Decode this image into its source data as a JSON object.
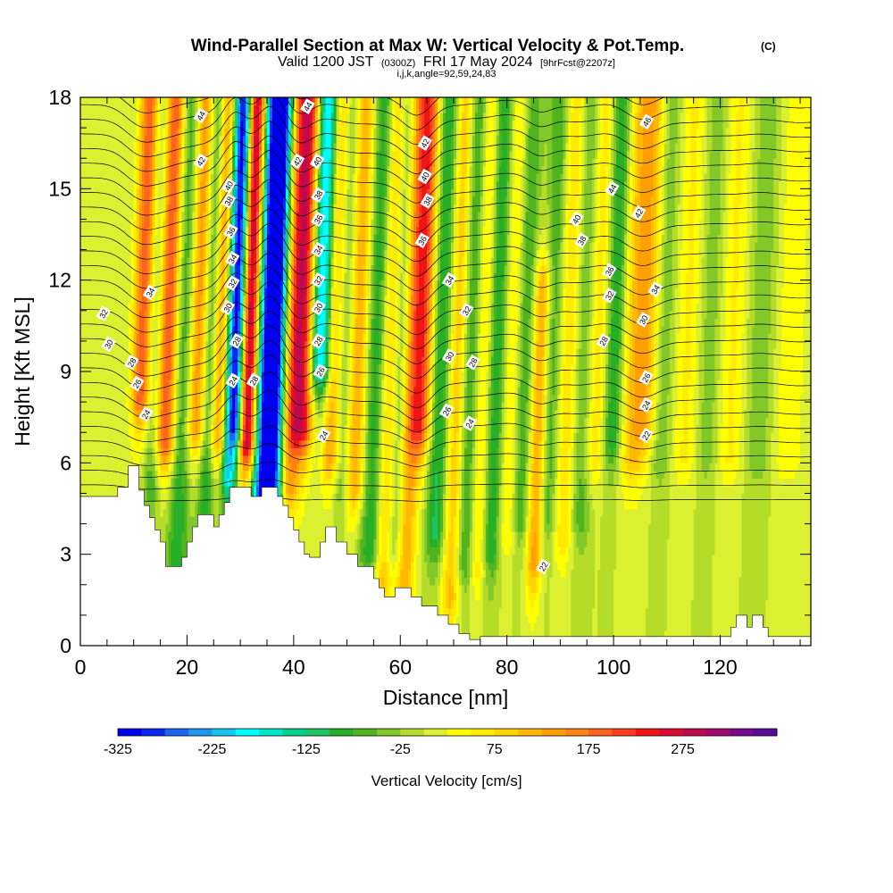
{
  "chart_data": {
    "type": "heatmap",
    "title": "Wind-Parallel Section at Max W: Vertical Velocity & Pot.Temp.",
    "copyright_mark": "(C)",
    "subtitle": {
      "valid_prefix": "Valid 1200 JST",
      "utc": "(0300Z)",
      "date": "FRI 17 May 2024",
      "forecast": "[9hrFcst@2207z]"
    },
    "section_info": "i,j,k,angle=92,59,24,83",
    "xlabel": "Distance [nm]",
    "ylabel": "Height [Kft MSL]",
    "xlim": [
      0,
      137
    ],
    "ylim": [
      0,
      18
    ],
    "xticks": [
      {
        "v": 0,
        "label": "0"
      },
      {
        "v": 20,
        "label": "20"
      },
      {
        "v": 40,
        "label": "40"
      },
      {
        "v": 60,
        "label": "60"
      },
      {
        "v": 80,
        "label": "80"
      },
      {
        "v": 100,
        "label": "100"
      },
      {
        "v": 120,
        "label": "120"
      }
    ],
    "yticks": [
      {
        "v": 0,
        "label": "0"
      },
      {
        "v": 3,
        "label": "3"
      },
      {
        "v": 6,
        "label": "6"
      },
      {
        "v": 9,
        "label": "9"
      },
      {
        "v": 12,
        "label": "12"
      },
      {
        "v": 15,
        "label": "15"
      },
      {
        "v": 18,
        "label": "18"
      }
    ],
    "colorbar": {
      "title": "Vertical Velocity [cm/s]",
      "min": -325,
      "step": 25,
      "colors": [
        "#0000f0",
        "#0a28f0",
        "#1e64f0",
        "#1e96f0",
        "#10c8f0",
        "#00ffff",
        "#00e6c8",
        "#00d28c",
        "#1ec364",
        "#28af28",
        "#50b41e",
        "#82c828",
        "#b4dc28",
        "#dcf032",
        "#ffff00",
        "#ffeb00",
        "#ffd200",
        "#ffb900",
        "#ffa000",
        "#ff8214",
        "#ff641e",
        "#ff3c1e",
        "#f01414",
        "#dc0a32",
        "#be0a50",
        "#a00a6e",
        "#780a8c",
        "#5a0a96"
      ],
      "labels": [
        {
          "v": -325,
          "label": "-325"
        },
        {
          "v": -225,
          "label": "-225"
        },
        {
          "v": -125,
          "label": "-125"
        },
        {
          "v": -25,
          "label": "-25"
        },
        {
          "v": 75,
          "label": "75"
        },
        {
          "v": 175,
          "label": "175"
        },
        {
          "v": 275,
          "label": "275"
        }
      ]
    },
    "terrain_kft": [
      [
        0,
        4.9
      ],
      [
        7,
        4.9
      ],
      [
        7,
        5.2
      ],
      [
        9,
        5.2
      ],
      [
        9,
        5.9
      ],
      [
        11,
        5.9
      ],
      [
        11,
        5.1
      ],
      [
        12,
        5.1
      ],
      [
        12,
        4.6
      ],
      [
        13,
        4.6
      ],
      [
        13,
        4.2
      ],
      [
        14,
        4.2
      ],
      [
        14,
        3.8
      ],
      [
        15,
        3.8
      ],
      [
        15,
        3.4
      ],
      [
        16,
        3.4
      ],
      [
        16,
        2.6
      ],
      [
        19,
        2.6
      ],
      [
        19,
        2.9
      ],
      [
        20,
        2.9
      ],
      [
        20,
        3.4
      ],
      [
        21,
        3.4
      ],
      [
        21,
        3.9
      ],
      [
        22,
        3.9
      ],
      [
        22,
        4.3
      ],
      [
        25,
        4.3
      ],
      [
        25,
        3.9
      ],
      [
        26,
        3.9
      ],
      [
        26,
        4.3
      ],
      [
        27,
        4.3
      ],
      [
        27,
        4.7
      ],
      [
        28,
        4.7
      ],
      [
        28,
        5.2
      ],
      [
        32,
        5.2
      ],
      [
        32,
        4.9
      ],
      [
        34,
        4.9
      ],
      [
        34,
        5.2
      ],
      [
        37,
        5.2
      ],
      [
        37,
        4.9
      ],
      [
        38,
        4.9
      ],
      [
        38,
        4.6
      ],
      [
        39,
        4.6
      ],
      [
        39,
        4.2
      ],
      [
        40,
        4.2
      ],
      [
        40,
        3.8
      ],
      [
        41,
        3.8
      ],
      [
        41,
        3.4
      ],
      [
        42,
        3.4
      ],
      [
        42,
        3.0
      ],
      [
        43,
        3.0
      ],
      [
        43,
        2.9
      ],
      [
        45,
        2.9
      ],
      [
        45,
        3.4
      ],
      [
        46,
        3.4
      ],
      [
        46,
        3.9
      ],
      [
        48,
        3.9
      ],
      [
        48,
        3.4
      ],
      [
        50,
        3.4
      ],
      [
        50,
        3.0
      ],
      [
        52,
        3.0
      ],
      [
        52,
        2.6
      ],
      [
        55,
        2.6
      ],
      [
        55,
        2.2
      ],
      [
        56,
        2.2
      ],
      [
        56,
        1.9
      ],
      [
        57,
        1.9
      ],
      [
        57,
        1.6
      ],
      [
        59,
        1.6
      ],
      [
        59,
        1.9
      ],
      [
        62,
        1.9
      ],
      [
        62,
        1.6
      ],
      [
        64,
        1.6
      ],
      [
        64,
        1.3
      ],
      [
        67,
        1.3
      ],
      [
        67,
        1.0
      ],
      [
        69,
        1.0
      ],
      [
        69,
        0.7
      ],
      [
        71,
        0.7
      ],
      [
        71,
        0.4
      ],
      [
        73,
        0.4
      ],
      [
        73,
        0.2
      ],
      [
        75,
        0.2
      ],
      [
        75,
        0.3
      ],
      [
        122,
        0.3
      ],
      [
        122,
        0.6
      ],
      [
        123,
        0.6
      ],
      [
        123,
        1.0
      ],
      [
        125,
        1.0
      ],
      [
        125,
        0.6
      ],
      [
        126,
        0.6
      ],
      [
        126,
        1.0
      ],
      [
        128,
        1.0
      ],
      [
        128,
        0.6
      ],
      [
        129,
        0.6
      ],
      [
        129,
        0.3
      ],
      [
        137,
        0.3
      ]
    ],
    "velocity_bands": [
      {
        "x": 11.5,
        "w": 1.3,
        "amp": 200,
        "top": 18,
        "base": 8.0
      },
      {
        "x": 14.2,
        "w": 1.3,
        "amp": -90,
        "top": 18,
        "base": 5.0
      },
      {
        "x": 16.2,
        "w": 1.4,
        "amp": 240,
        "top": 18,
        "base": 6.5
      },
      {
        "x": 19.2,
        "w": 1.6,
        "amp": -95,
        "top": 18,
        "base": 2.5
      },
      {
        "x": 22.0,
        "w": 1.3,
        "amp": 170,
        "top": 18,
        "base": 7.0
      },
      {
        "x": 24.3,
        "w": 1.2,
        "amp": -110,
        "top": 18,
        "base": 4.0
      },
      {
        "x": 26.3,
        "w": 1.2,
        "amp": 180,
        "top": 18,
        "base": 6.5
      },
      {
        "x": 28.2,
        "w": 1.1,
        "amp": -200,
        "top": 18,
        "base": 5.5
      },
      {
        "x": 29.6,
        "w": 1.0,
        "amp": -250,
        "top": 18,
        "base": 7.0
      },
      {
        "x": 31.6,
        "w": 1.3,
        "amp": 330,
        "top": 18,
        "base": 6.5
      },
      {
        "x": 33.9,
        "w": 1.2,
        "amp": -110,
        "top": 18,
        "base": 5.0
      },
      {
        "x": 36.2,
        "w": 1.7,
        "amp": -400,
        "top": 18,
        "base": 4.8
      },
      {
        "x": 39.4,
        "w": 1.3,
        "amp": 150,
        "top": 18,
        "base": 5.0
      },
      {
        "x": 41.8,
        "w": 1.6,
        "amp": 270,
        "top": 18,
        "base": 7.0
      },
      {
        "x": 44.8,
        "w": 1.6,
        "amp": -260,
        "top": 18,
        "base": 9.0
      },
      {
        "x": 47.5,
        "w": 1.3,
        "amp": 150,
        "top": 18,
        "base": 6.0
      },
      {
        "x": 49.6,
        "w": 1.3,
        "amp": -90,
        "top": 18,
        "base": 5.0
      },
      {
        "x": 52.0,
        "w": 1.5,
        "amp": 150,
        "top": 18,
        "base": 5.0
      },
      {
        "x": 55.5,
        "w": 1.8,
        "amp": -110,
        "top": 18,
        "base": 3.0
      },
      {
        "x": 58.0,
        "w": 1.3,
        "amp": 130,
        "top": 18,
        "base": 2.0
      },
      {
        "x": 60.0,
        "w": 1.2,
        "amp": -80,
        "top": 18,
        "base": 3.0
      },
      {
        "x": 62.0,
        "w": 1.3,
        "amp": 130,
        "top": 18,
        "base": 1.5
      },
      {
        "x": 64.2,
        "w": 1.4,
        "amp": 200,
        "top": 18,
        "base": 7.0
      },
      {
        "x": 67.6,
        "w": 1.5,
        "amp": -110,
        "top": 18,
        "base": 3.5
      },
      {
        "x": 70.8,
        "w": 1.3,
        "amp": 130,
        "top": 18,
        "base": 1.5
      },
      {
        "x": 73.0,
        "w": 1.5,
        "amp": -100,
        "top": 18,
        "base": 2.5
      },
      {
        "x": 75.7,
        "w": 1.2,
        "amp": 110,
        "top": 18,
        "base": 2.5
      },
      {
        "x": 78.0,
        "w": 1.6,
        "amp": -120,
        "top": 18,
        "base": 3.0
      },
      {
        "x": 80.8,
        "w": 1.4,
        "amp": 90,
        "top": 18,
        "base": 3.5
      },
      {
        "x": 83.2,
        "w": 1.4,
        "amp": -85,
        "top": 18,
        "base": 4.0
      },
      {
        "x": 86.2,
        "w": 1.1,
        "amp": 150,
        "top": 12,
        "base": 2.5
      },
      {
        "x": 88.5,
        "w": 1.4,
        "amp": -80,
        "top": 18,
        "base": 4.0
      },
      {
        "x": 91.5,
        "w": 1.5,
        "amp": 90,
        "top": 18,
        "base": 3.5
      },
      {
        "x": 94.5,
        "w": 1.6,
        "amp": -80,
        "top": 18,
        "base": 4.0
      },
      {
        "x": 97.0,
        "w": 1.6,
        "amp": 100,
        "top": 18,
        "base": 6.0
      },
      {
        "x": 100.0,
        "w": 1.5,
        "amp": -120,
        "top": 18,
        "base": 6.5
      },
      {
        "x": 103.5,
        "w": 1.7,
        "amp": 100,
        "top": 18,
        "base": 6.0
      },
      {
        "x": 106.5,
        "w": 1.6,
        "amp": 110,
        "top": 18,
        "base": 7.0
      },
      {
        "x": 109.0,
        "w": 1.5,
        "amp": -60,
        "top": 18,
        "base": 6.0
      },
      {
        "x": 114.0,
        "w": 1.8,
        "amp": 60,
        "top": 18,
        "base": 6.0
      },
      {
        "x": 118.0,
        "w": 2.0,
        "amp": -50,
        "top": 18,
        "base": 6.0
      },
      {
        "x": 122.0,
        "w": 2.0,
        "amp": 60,
        "top": 18,
        "base": 6.0
      },
      {
        "x": 127.5,
        "w": 2.0,
        "amp": -45,
        "top": 18,
        "base": 6.0
      },
      {
        "x": 133.0,
        "w": 2.2,
        "amp": 45,
        "top": 18,
        "base": 6.0
      }
    ],
    "isotherm_labels": [
      {
        "x": 22.6,
        "y": 17.4,
        "label": "44"
      },
      {
        "x": 22.6,
        "y": 15.9,
        "label": "42"
      },
      {
        "x": 27.8,
        "y": 15.1,
        "label": "40"
      },
      {
        "x": 27.8,
        "y": 14.6,
        "label": "38"
      },
      {
        "x": 28.2,
        "y": 13.6,
        "label": "36"
      },
      {
        "x": 28.5,
        "y": 12.7,
        "label": "34"
      },
      {
        "x": 28.5,
        "y": 11.9,
        "label": "32"
      },
      {
        "x": 27.6,
        "y": 11.1,
        "label": "30"
      },
      {
        "x": 29.3,
        "y": 10.0,
        "label": "28"
      },
      {
        "x": 28.6,
        "y": 8.7,
        "label": "24"
      },
      {
        "x": 32.5,
        "y": 8.7,
        "label": "28"
      },
      {
        "x": 42.6,
        "y": 17.7,
        "label": "44"
      },
      {
        "x": 40.7,
        "y": 15.9,
        "label": "42"
      },
      {
        "x": 44.4,
        "y": 15.9,
        "label": "40"
      },
      {
        "x": 44.6,
        "y": 14.8,
        "label": "38"
      },
      {
        "x": 44.6,
        "y": 14.0,
        "label": "36"
      },
      {
        "x": 44.6,
        "y": 13.0,
        "label": "34"
      },
      {
        "x": 44.6,
        "y": 12.0,
        "label": "32"
      },
      {
        "x": 44.6,
        "y": 11.1,
        "label": "30"
      },
      {
        "x": 44.6,
        "y": 10.0,
        "label": "28"
      },
      {
        "x": 45.0,
        "y": 9.0,
        "label": "26"
      },
      {
        "x": 45.6,
        "y": 6.9,
        "label": "24"
      },
      {
        "x": 64.6,
        "y": 16.5,
        "label": "42"
      },
      {
        "x": 64.6,
        "y": 15.4,
        "label": "40"
      },
      {
        "x": 65.1,
        "y": 14.6,
        "label": "38"
      },
      {
        "x": 64.1,
        "y": 13.3,
        "label": "36"
      },
      {
        "x": 69.2,
        "y": 12.0,
        "label": "34"
      },
      {
        "x": 72.4,
        "y": 11.0,
        "label": "32"
      },
      {
        "x": 69.2,
        "y": 9.5,
        "label": "30"
      },
      {
        "x": 73.6,
        "y": 9.3,
        "label": "28"
      },
      {
        "x": 68.7,
        "y": 7.7,
        "label": "26"
      },
      {
        "x": 73.0,
        "y": 7.3,
        "label": "24"
      },
      {
        "x": 106.2,
        "y": 17.2,
        "label": "46"
      },
      {
        "x": 99.7,
        "y": 15.0,
        "label": "44"
      },
      {
        "x": 104.7,
        "y": 14.2,
        "label": "42"
      },
      {
        "x": 93.0,
        "y": 14.0,
        "label": "40"
      },
      {
        "x": 94.0,
        "y": 13.3,
        "label": "38"
      },
      {
        "x": 99.2,
        "y": 12.3,
        "label": "36"
      },
      {
        "x": 107.8,
        "y": 11.7,
        "label": "34"
      },
      {
        "x": 99.2,
        "y": 11.5,
        "label": "32"
      },
      {
        "x": 105.6,
        "y": 10.7,
        "label": "30"
      },
      {
        "x": 98.1,
        "y": 10.0,
        "label": "28"
      },
      {
        "x": 106.1,
        "y": 8.8,
        "label": "26"
      },
      {
        "x": 106.1,
        "y": 7.9,
        "label": "24"
      },
      {
        "x": 106.1,
        "y": 6.9,
        "label": "22"
      },
      {
        "x": 4.3,
        "y": 10.9,
        "label": "32"
      },
      {
        "x": 5.3,
        "y": 9.9,
        "label": "30"
      },
      {
        "x": 9.6,
        "y": 9.3,
        "label": "28"
      },
      {
        "x": 10.6,
        "y": 8.6,
        "label": "26"
      },
      {
        "x": 12.3,
        "y": 7.6,
        "label": "24"
      },
      {
        "x": 13.1,
        "y": 11.6,
        "label": "34"
      },
      {
        "x": 86.8,
        "y": 2.6,
        "label": "22"
      }
    ]
  }
}
